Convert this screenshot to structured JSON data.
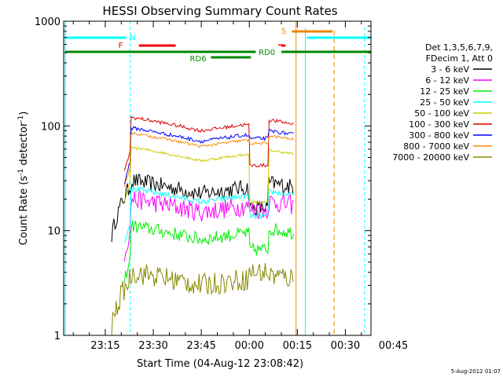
{
  "chart_data": {
    "type": "line",
    "title": "HESSI Observing Summary Count Rates",
    "xlabel": "Start Time (04-Aug-12 23:08:42)",
    "ylabel_main": "Count Rate (s",
    "ylabel_sup1": "-1",
    "ylabel_mid": " detector",
    "ylabel_sup2": "-1",
    "ylabel_end": ")",
    "y_scale": "log",
    "ylim": [
      1,
      1000
    ],
    "y_ticks": [
      {
        "label": "1",
        "value": 1
      },
      {
        "label": "10",
        "value": 10
      },
      {
        "label": "100",
        "value": 100
      },
      {
        "label": "1000",
        "value": 1000
      }
    ],
    "xlim_minutes": [
      -13,
      83
    ],
    "x_ticks": [
      {
        "label": "23:15",
        "t": 0
      },
      {
        "label": "23:30",
        "t": 15
      },
      {
        "label": "23:45",
        "t": 30
      },
      {
        "label": "00:00",
        "t": 45
      },
      {
        "label": "00:15",
        "t": 60
      },
      {
        "label": "00:30",
        "t": 75
      },
      {
        "label": "00:45",
        "t": 90
      }
    ],
    "legend_header": [
      "Det 1,3,5,6,7,9,",
      "FDecim 1, Att 0"
    ],
    "legend_position": "right",
    "series": [
      {
        "name": "3 - 6 keV",
        "color": "#000000",
        "level": 30,
        "wiggle": 0.18,
        "dipdrop": 0.55
      },
      {
        "name": "6 - 12 keV",
        "color": "#ff00ff",
        "level": 20,
        "wiggle": 0.22,
        "dipdrop": 0.8
      },
      {
        "name": "12 - 25 keV",
        "color": "#00ee00",
        "level": 11,
        "wiggle": 0.15,
        "dipdrop": 0.6
      },
      {
        "name": "25 - 50 keV",
        "color": "#00ffff",
        "level": 25,
        "wiggle": 0.06,
        "dipdrop": 0.55
      },
      {
        "name": "50 - 100 keV",
        "color": "#cccc00",
        "level": 62,
        "wiggle": 0.03,
        "dipdrop": 0.3
      },
      {
        "name": "100 - 300 keV",
        "color": "#dd0000",
        "level": 120,
        "wiggle": 0.04,
        "dipdrop": 0.35
      },
      {
        "name": "300 - 800 keV",
        "color": "#0000ff",
        "level": 95,
        "wiggle": 0.04,
        "dipdrop": 0.8
      },
      {
        "name": "800 - 7000 keV",
        "color": "#ff8800",
        "level": 85,
        "wiggle": 0.03,
        "dipdrop": 0.8
      },
      {
        "name": "7000 - 20000 keV",
        "color": "#888800",
        "level": 4,
        "wiggle": 0.25,
        "dipdrop": 1.0
      }
    ],
    "flags": [
      {
        "label": "N",
        "color": "#00ffff"
      },
      {
        "label": "F",
        "color": "#ee0000"
      },
      {
        "label": "RD0",
        "color": "#008800"
      },
      {
        "label": "RD6",
        "color": "#008800"
      },
      {
        "label": "S",
        "color": "#ee8800"
      }
    ]
  },
  "footer": {
    "timestamp": "5-Aug-2012 01:07"
  }
}
